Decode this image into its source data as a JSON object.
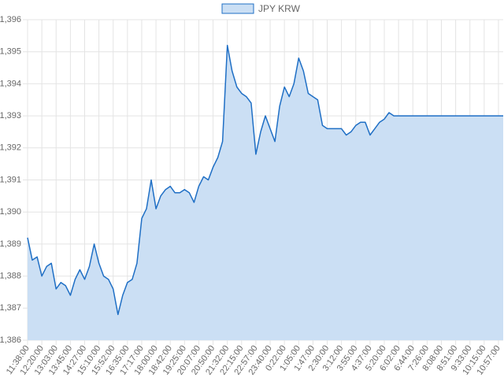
{
  "chart_data": {
    "type": "line",
    "categories": [
      "11:38:00",
      null,
      null,
      "12:20:00",
      null,
      null,
      "13:03:00",
      null,
      null,
      "13:45:00",
      null,
      null,
      "14:27:00",
      null,
      null,
      "15:10:00",
      null,
      null,
      "15:52:00",
      null,
      null,
      "16:35:00",
      null,
      null,
      "17:17:00",
      null,
      null,
      "18:00:00",
      null,
      null,
      "18:42:00",
      null,
      null,
      "19:25:00",
      null,
      null,
      "20:07:00",
      null,
      null,
      "20:50:00",
      null,
      null,
      "21:32:00",
      null,
      null,
      "22:15:00",
      null,
      null,
      "22:57:00",
      null,
      null,
      "23:40:00",
      null,
      null,
      "0:22:00",
      null,
      null,
      "1:05:00",
      null,
      null,
      "1:47:00",
      null,
      null,
      "2:30:00",
      null,
      null,
      "3:12:00",
      null,
      null,
      "3:55:00",
      null,
      null,
      "4:37:00",
      null,
      null,
      "5:20:00",
      null,
      null,
      "6:02:00",
      null,
      null,
      "6:44:00",
      null,
      null,
      "7:26:00",
      null,
      null,
      "8:08:00",
      null,
      null,
      "8:51:00",
      null,
      null,
      "9:33:00",
      null,
      null,
      "10:15:00",
      null,
      null,
      "10:57:00",
      null
    ],
    "series": [
      {
        "name": "JPY KRW",
        "color": "#1f6fc5",
        "fill": "#cbdff4",
        "values": [
          1389.2,
          1388.5,
          1388.6,
          1388.0,
          1388.3,
          1388.4,
          1387.6,
          1387.8,
          1387.7,
          1387.4,
          1387.9,
          1388.2,
          1387.9,
          1388.3,
          1389.0,
          1388.4,
          1388.0,
          1387.9,
          1387.6,
          1386.8,
          1387.4,
          1387.8,
          1387.9,
          1388.4,
          1389.8,
          1390.1,
          1391.0,
          1390.1,
          1390.5,
          1390.7,
          1390.8,
          1390.6,
          1390.6,
          1390.7,
          1390.6,
          1390.3,
          1390.8,
          1391.1,
          1391.0,
          1391.4,
          1391.7,
          1392.2,
          1395.2,
          1394.4,
          1393.9,
          1393.7,
          1393.6,
          1393.4,
          1391.8,
          1392.5,
          1393.0,
          1392.6,
          1392.2,
          1393.3,
          1393.9,
          1393.6,
          1394.0,
          1394.8,
          1394.4,
          1393.7,
          1393.6,
          1393.5,
          1392.7,
          1392.6,
          1392.6,
          1392.6,
          1392.6,
          1392.4,
          1392.5,
          1392.7,
          1392.8,
          1392.8,
          1392.4,
          1392.6,
          1392.8,
          1392.9,
          1393.1,
          1393.0,
          1393.0,
          1393.0,
          1393.0,
          1393.0,
          1393.0,
          1393.0,
          1393.0,
          1393.0,
          1393.0,
          1393.0,
          1393.0,
          1393.0,
          1393.0,
          1393.0,
          1393.0,
          1393.0,
          1393.0,
          1393.0,
          1393.0,
          1393.0,
          1393.0,
          1393.0,
          1393.0
        ]
      }
    ],
    "ylim": [
      1386,
      1396
    ],
    "yticks": [
      {
        "value": 1386,
        "label": "1,386"
      },
      {
        "value": 1387,
        "label": "1,387"
      },
      {
        "value": 1388,
        "label": "1,388"
      },
      {
        "value": 1389,
        "label": "1,389"
      },
      {
        "value": 1390,
        "label": "1,390"
      },
      {
        "value": 1391,
        "label": "1,391"
      },
      {
        "value": 1392,
        "label": "1,392"
      },
      {
        "value": 1393,
        "label": "1,393"
      },
      {
        "value": 1394,
        "label": "1,394"
      },
      {
        "value": 1395,
        "label": "1,395"
      },
      {
        "value": 1396,
        "label": "1,396"
      }
    ],
    "grid": true,
    "legend": "top"
  }
}
